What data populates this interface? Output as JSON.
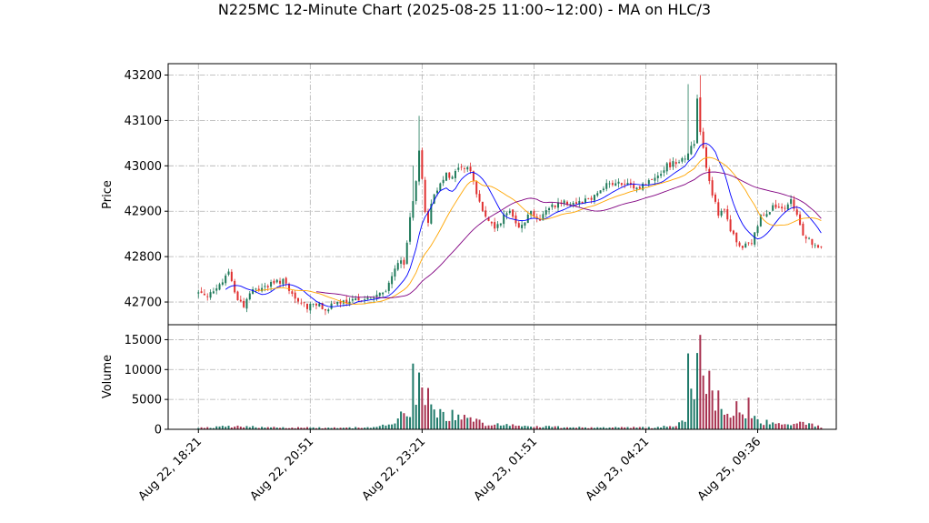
{
  "chart_data": {
    "type": "candlestick",
    "title": "N225MC 12-Minute Chart (2025-08-25 11:00~12:00) - MA on HLC/3",
    "price_panel": {
      "ylabel": "Price",
      "ylim": [
        42650,
        43225
      ],
      "yticks": [
        42700,
        42800,
        42900,
        43000,
        43100,
        43200
      ],
      "ytick_labels": [
        "42700",
        "42800",
        "42900",
        "43000",
        "43100",
        "43200"
      ],
      "grid": true
    },
    "volume_panel": {
      "ylabel": "Volume",
      "ylim": [
        0,
        17500
      ],
      "yticks": [
        0,
        5000,
        10000,
        15000
      ],
      "ytick_labels": [
        "0",
        "5000",
        "10000",
        "15000"
      ],
      "grid": true
    },
    "xlim": [
      -10,
      211
    ],
    "xticks": [
      0,
      37,
      74,
      111,
      148,
      185
    ],
    "xtick_labels": [
      "Aug 22, 18:21",
      "Aug 22, 20:51",
      "Aug 22, 23:21",
      "Aug 23, 01:51",
      "Aug 23, 04:21",
      "Aug 25, 09:36"
    ],
    "colors": {
      "up": "#1f7a5a",
      "down": "#e03030",
      "vol_up": "#1f7a6a",
      "vol_down": "#a83250",
      "ma_short": "#0000ff",
      "ma_mid": "#ffa500",
      "ma_long": "#800080"
    },
    "close_anchors": [
      [
        0,
        42720
      ],
      [
        5,
        42718
      ],
      [
        8,
        42745
      ],
      [
        10,
        42770
      ],
      [
        12,
        42720
      ],
      [
        15,
        42690
      ],
      [
        17,
        42720
      ],
      [
        20,
        42730
      ],
      [
        25,
        42740
      ],
      [
        28,
        42750
      ],
      [
        30,
        42720
      ],
      [
        33,
        42700
      ],
      [
        36,
        42690
      ],
      [
        38,
        42700
      ],
      [
        41,
        42685
      ],
      [
        44,
        42690
      ],
      [
        47,
        42700
      ],
      [
        50,
        42695
      ],
      [
        53,
        42710
      ],
      [
        56,
        42705
      ],
      [
        59,
        42715
      ],
      [
        62,
        42720
      ],
      [
        64,
        42760
      ],
      [
        66,
        42790
      ],
      [
        68,
        42780
      ],
      [
        70,
        42880
      ],
      [
        72,
        42960
      ],
      [
        73,
        43040
      ],
      [
        75,
        42900
      ],
      [
        76,
        42880
      ],
      [
        78,
        42940
      ],
      [
        80,
        42960
      ],
      [
        82,
        42990
      ],
      [
        84,
        42970
      ],
      [
        86,
        43000
      ],
      [
        88,
        42990
      ],
      [
        89,
        43000
      ],
      [
        90,
        42990
      ],
      [
        92,
        42940
      ],
      [
        94,
        42900
      ],
      [
        96,
        42880
      ],
      [
        98,
        42860
      ],
      [
        100,
        42880
      ],
      [
        103,
        42900
      ],
      [
        106,
        42870
      ],
      [
        108,
        42880
      ],
      [
        110,
        42900
      ],
      [
        113,
        42880
      ],
      [
        116,
        42910
      ],
      [
        120,
        42920
      ],
      [
        125,
        42920
      ],
      [
        130,
        42930
      ],
      [
        135,
        42960
      ],
      [
        140,
        42960
      ],
      [
        145,
        42950
      ],
      [
        150,
        42970
      ],
      [
        155,
        43000
      ],
      [
        158,
        43010
      ],
      [
        161,
        43020
      ],
      [
        164,
        43050
      ],
      [
        165,
        43150
      ],
      [
        166,
        43080
      ],
      [
        168,
        43000
      ],
      [
        170,
        42940
      ],
      [
        172,
        42890
      ],
      [
        174,
        42900
      ],
      [
        176,
        42860
      ],
      [
        178,
        42830
      ],
      [
        180,
        42820
      ],
      [
        183,
        42830
      ],
      [
        186,
        42890
      ],
      [
        190,
        42910
      ],
      [
        194,
        42900
      ],
      [
        196,
        42920
      ],
      [
        198,
        42890
      ],
      [
        200,
        42850
      ],
      [
        203,
        42830
      ],
      [
        206,
        42815
      ]
    ],
    "volume_anchors": [
      [
        0,
        200
      ],
      [
        10,
        500
      ],
      [
        20,
        400
      ],
      [
        30,
        300
      ],
      [
        40,
        300
      ],
      [
        50,
        250
      ],
      [
        60,
        400
      ],
      [
        65,
        1500
      ],
      [
        70,
        3000
      ],
      [
        73,
        9000
      ],
      [
        75,
        6000
      ],
      [
        78,
        3500
      ],
      [
        82,
        2500
      ],
      [
        86,
        2000
      ],
      [
        90,
        1500
      ],
      [
        95,
        1000
      ],
      [
        100,
        800
      ],
      [
        110,
        500
      ],
      [
        120,
        400
      ],
      [
        130,
        300
      ],
      [
        140,
        300
      ],
      [
        150,
        300
      ],
      [
        158,
        600
      ],
      [
        162,
        2500
      ],
      [
        163,
        11000
      ],
      [
        165,
        9000
      ],
      [
        167,
        7500
      ],
      [
        170,
        4500
      ],
      [
        173,
        3500
      ],
      [
        176,
        2500
      ],
      [
        180,
        2000
      ],
      [
        185,
        1500
      ],
      [
        190,
        1000
      ],
      [
        195,
        800
      ],
      [
        200,
        900
      ],
      [
        206,
        500
      ]
    ]
  }
}
